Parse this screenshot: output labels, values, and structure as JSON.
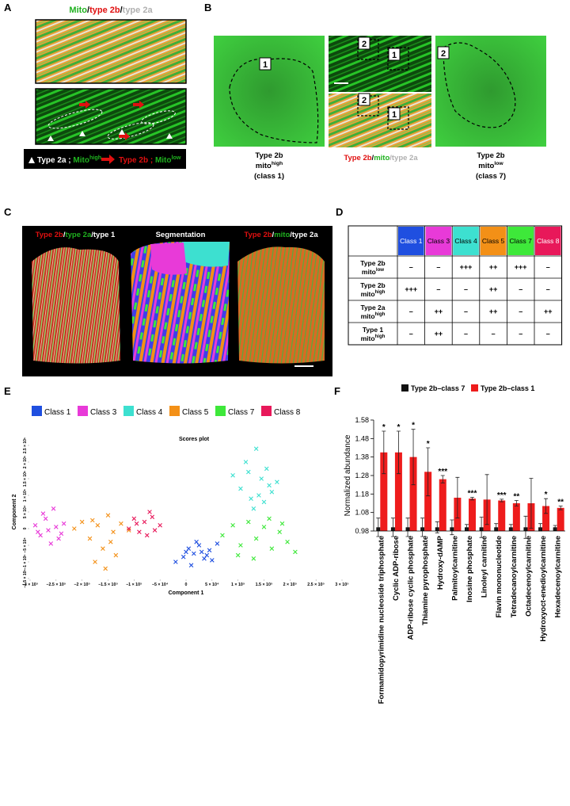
{
  "panel_a": {
    "letter": "A",
    "title": [
      "Mito",
      "/",
      "type 2b",
      "/",
      "type 2a"
    ],
    "legend": {
      "type2a": "Type 2a ; ",
      "mito_a": "Mito",
      "sup_a": "high",
      "type2b": "Type 2b ; ",
      "mito_b": "Mito",
      "sup_b": "low"
    }
  },
  "panel_b": {
    "letter": "B",
    "region_labels": [
      "1",
      "2",
      "1",
      "2",
      "1",
      "2"
    ],
    "captions": {
      "left": [
        "Type 2b",
        "mito",
        "high",
        "(class 1)"
      ],
      "middle": [
        "Type 2b",
        "/",
        "mito",
        "/type 2a"
      ],
      "right": [
        "Type 2b",
        "mito",
        "low",
        "(class 7)"
      ]
    }
  },
  "panel_c": {
    "letter": "C",
    "labels": {
      "left": [
        "Type 2b",
        "/",
        "type 2a",
        "/type 1"
      ],
      "middle": "Segmentation",
      "right": [
        "Type 2b",
        "/",
        "mito",
        "/type 2a"
      ]
    }
  },
  "panel_d": {
    "letter": "D",
    "table": {
      "header": [
        {
          "text": "Class 1",
          "color": "#1f4fe0"
        },
        {
          "text": "Class 3",
          "color": "#e83ad8"
        },
        {
          "text": "Class 4",
          "color": "#3de0d0"
        },
        {
          "text": "Class 5",
          "color": "#f39017"
        },
        {
          "text": "Class 7",
          "color": "#3ee83a"
        },
        {
          "text": "Class 8",
          "color": "#e8185a"
        }
      ],
      "rows": [
        {
          "label": [
            "Type 2b",
            "mito",
            "low"
          ],
          "cells": [
            "–",
            "–",
            "+++",
            "++",
            "+++",
            "–"
          ]
        },
        {
          "label": [
            "Type 2b",
            "mito",
            "high"
          ],
          "cells": [
            "+++",
            "–",
            "–",
            "++",
            "–",
            "–"
          ]
        },
        {
          "label": [
            "Type 2a",
            "mito",
            "high"
          ],
          "cells": [
            "–",
            "++",
            "–",
            "++",
            "–",
            "++"
          ]
        },
        {
          "label": [
            "Type 1",
            "mito",
            "high"
          ],
          "cells": [
            "–",
            "++",
            "–",
            "–",
            "–",
            "–"
          ]
        }
      ]
    }
  },
  "chart_data": [
    {
      "type": "scatter",
      "panel_letter": "E",
      "title": "Scores plot",
      "x_label": "Component 1",
      "y_label": "Component 2",
      "xlim": [
        -300000,
        300000
      ],
      "ylim": [
        -150000,
        250000
      ],
      "xticks": [
        {
          "value": -300000,
          "label": "−3 × 10⁵"
        },
        {
          "value": -250000,
          "label": "−2.5 × 10⁵"
        },
        {
          "value": -200000,
          "label": "−2 × 10⁵"
        },
        {
          "value": -150000,
          "label": "−1.5 × 10⁵"
        },
        {
          "value": -100000,
          "label": "−1 × 10⁵"
        },
        {
          "value": -50000,
          "label": "−5 × 10⁴"
        },
        0,
        {
          "value": 50000,
          "label": "5 × 10⁴"
        },
        {
          "value": 100000,
          "label": "1 × 10⁵"
        },
        {
          "value": 150000,
          "label": "1.5 × 10⁵"
        },
        {
          "value": 200000,
          "label": "2 × 10⁵"
        },
        {
          "value": 250000,
          "label": "2.5 × 10⁵"
        },
        {
          "value": 300000,
          "label": "3 × 10⁵"
        }
      ],
      "yticks": [
        {
          "value": -150000,
          "label": "−1.5 × 10⁵"
        },
        {
          "value": -100000,
          "label": "−1 × 10⁵"
        },
        {
          "value": -50000,
          "label": "−5 × 10⁴"
        },
        0,
        {
          "value": 50000,
          "label": "5 × 10⁴"
        },
        {
          "value": 100000,
          "label": "1 × 10⁵"
        },
        {
          "value": 150000,
          "label": "1.5 × 10⁵"
        },
        {
          "value": 200000,
          "label": "2 × 10⁵"
        },
        {
          "value": 250000,
          "label": "2.5 × 10⁵"
        }
      ],
      "series": [
        {
          "name": "Class 1",
          "color": "#1f4fe0",
          "x": [
            -20000,
            -5000,
            5000,
            15000,
            25000,
            35000,
            45000,
            60000,
            10000,
            30000,
            50000,
            0,
            20000,
            40000
          ],
          "values": [
            -100000,
            -85000,
            -60000,
            -75000,
            -50000,
            -90000,
            -65000,
            -45000,
            -110000,
            -70000,
            -95000,
            -70000,
            -40000,
            -80000
          ]
        },
        {
          "name": "Class 3",
          "color": "#e83ad8",
          "x": [
            -290000,
            -280000,
            -270000,
            -265000,
            -255000,
            -245000,
            -235000,
            -275000,
            -260000,
            -250000,
            -285000,
            -240000
          ],
          "values": [
            10000,
            -20000,
            30000,
            -5000,
            60000,
            -30000,
            15000,
            45000,
            -45000,
            5000,
            -10000,
            -15000
          ]
        },
        {
          "name": "Class 4",
          "color": "#3de0d0",
          "x": [
            90000,
            105000,
            115000,
            125000,
            135000,
            145000,
            155000,
            165000,
            175000,
            120000,
            140000,
            160000,
            130000,
            150000
          ],
          "values": [
            160000,
            120000,
            200000,
            90000,
            240000,
            150000,
            180000,
            110000,
            140000,
            170000,
            100000,
            130000,
            60000,
            80000
          ]
        },
        {
          "name": "Class 5",
          "color": "#f39017",
          "x": [
            -215000,
            -200000,
            -185000,
            -170000,
            -160000,
            -150000,
            -140000,
            -125000,
            -110000,
            -175000,
            -155000,
            -135000,
            -180000,
            -145000
          ],
          "values": [
            0,
            20000,
            -30000,
            10000,
            -60000,
            40000,
            -10000,
            15000,
            -5000,
            -100000,
            -120000,
            -80000,
            25000,
            -40000
          ]
        },
        {
          "name": "Class 7",
          "color": "#3ee83a",
          "x": [
            70000,
            90000,
            105000,
            120000,
            135000,
            150000,
            165000,
            180000,
            195000,
            210000,
            100000,
            160000,
            130000,
            185000
          ],
          "values": [
            -20000,
            10000,
            -50000,
            20000,
            -30000,
            5000,
            -60000,
            -10000,
            -40000,
            -70000,
            -80000,
            30000,
            -90000,
            15000
          ]
        },
        {
          "name": "Class 8",
          "color": "#e8185a",
          "x": [
            -110000,
            -100000,
            -90000,
            -80000,
            -70000,
            -60000,
            -50000,
            -95000,
            -75000,
            -65000
          ],
          "values": [
            0,
            30000,
            -10000,
            20000,
            50000,
            -5000,
            10000,
            15000,
            -20000,
            35000
          ]
        }
      ]
    },
    {
      "type": "bar",
      "panel_letter": "F",
      "y_label": "Normalized abundance",
      "categories": [
        "Formamidopyrimidine nucleoside triphosphate",
        "Cyclic ADP-ribose",
        "ADP-ribose cyclic phosphate",
        "Thiamine pyrophosphate",
        "Hydroxy-dAMP",
        "Palmitoylcarnitine",
        "Inosine phosphate",
        "Linoleyl carnitine",
        "Flavin mononucleotide",
        "Tetradecanoylcarnitine",
        "Octadecenoylcarnitine",
        "Hydroxyoct-enedioylcarnitine",
        "Hexadecenoylcarnitine"
      ],
      "ylim": [
        0.98,
        1.58
      ],
      "yticks": [
        0.98,
        1.08,
        1.18,
        1.28,
        1.38,
        1.48,
        1.58
      ],
      "series": [
        {
          "name": "Type 2b–class 7",
          "color": "#111111",
          "values": [
            1,
            1,
            1,
            1,
            1,
            1,
            1,
            1,
            1,
            1,
            1,
            1,
            1
          ],
          "errors": [
            0.05,
            0.05,
            0.05,
            0.05,
            0.03,
            0.04,
            0.015,
            0.055,
            0.02,
            0.015,
            0.06,
            0.02,
            0.01
          ]
        },
        {
          "name": "Type 2b–class 1",
          "color": "#ee1c1c",
          "values": [
            1.405,
            1.405,
            1.38,
            1.3,
            1.26,
            1.16,
            1.155,
            1.15,
            1.145,
            1.13,
            1.13,
            1.115,
            1.105
          ],
          "errors": [
            0.115,
            0.115,
            0.15,
            0.13,
            0.02,
            0.11,
            0.007,
            0.135,
            0.007,
            0.015,
            0.135,
            0.04,
            0.01
          ],
          "annotations": [
            "*",
            "*",
            "*",
            "*",
            "***",
            null,
            "***",
            null,
            "***",
            "**",
            null,
            "*",
            "**"
          ]
        }
      ]
    }
  ]
}
